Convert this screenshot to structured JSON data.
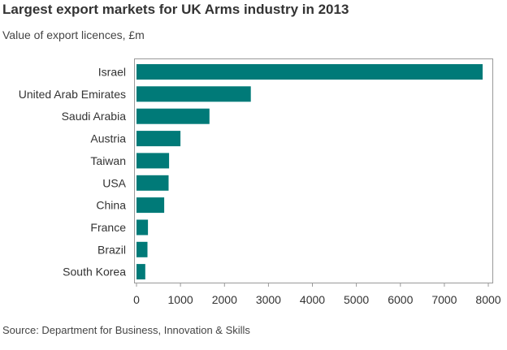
{
  "header": {
    "title": "Largest export markets for UK Arms industry in 2013",
    "subtitle": "Value of export licences, £m"
  },
  "footer": {
    "source": "Source: Department for Business, Innovation & Skills"
  },
  "chart_data": {
    "type": "bar",
    "orientation": "horizontal",
    "title": "Largest export markets for UK Arms industry in 2013",
    "subtitle": "Value of export licences, £m",
    "categories": [
      "Israel",
      "United Arab Emirates",
      "Saudi Arabia",
      "Austria",
      "Taiwan",
      "USA",
      "China",
      "France",
      "Brazil",
      "South Korea"
    ],
    "values": [
      7870,
      2600,
      1660,
      1000,
      740,
      730,
      630,
      260,
      250,
      200
    ],
    "xlim": [
      0,
      8000
    ],
    "xticks": [
      0,
      1000,
      2000,
      3000,
      4000,
      5000,
      6000,
      7000,
      8000
    ],
    "bar_color": "#007a78",
    "grid": false
  }
}
